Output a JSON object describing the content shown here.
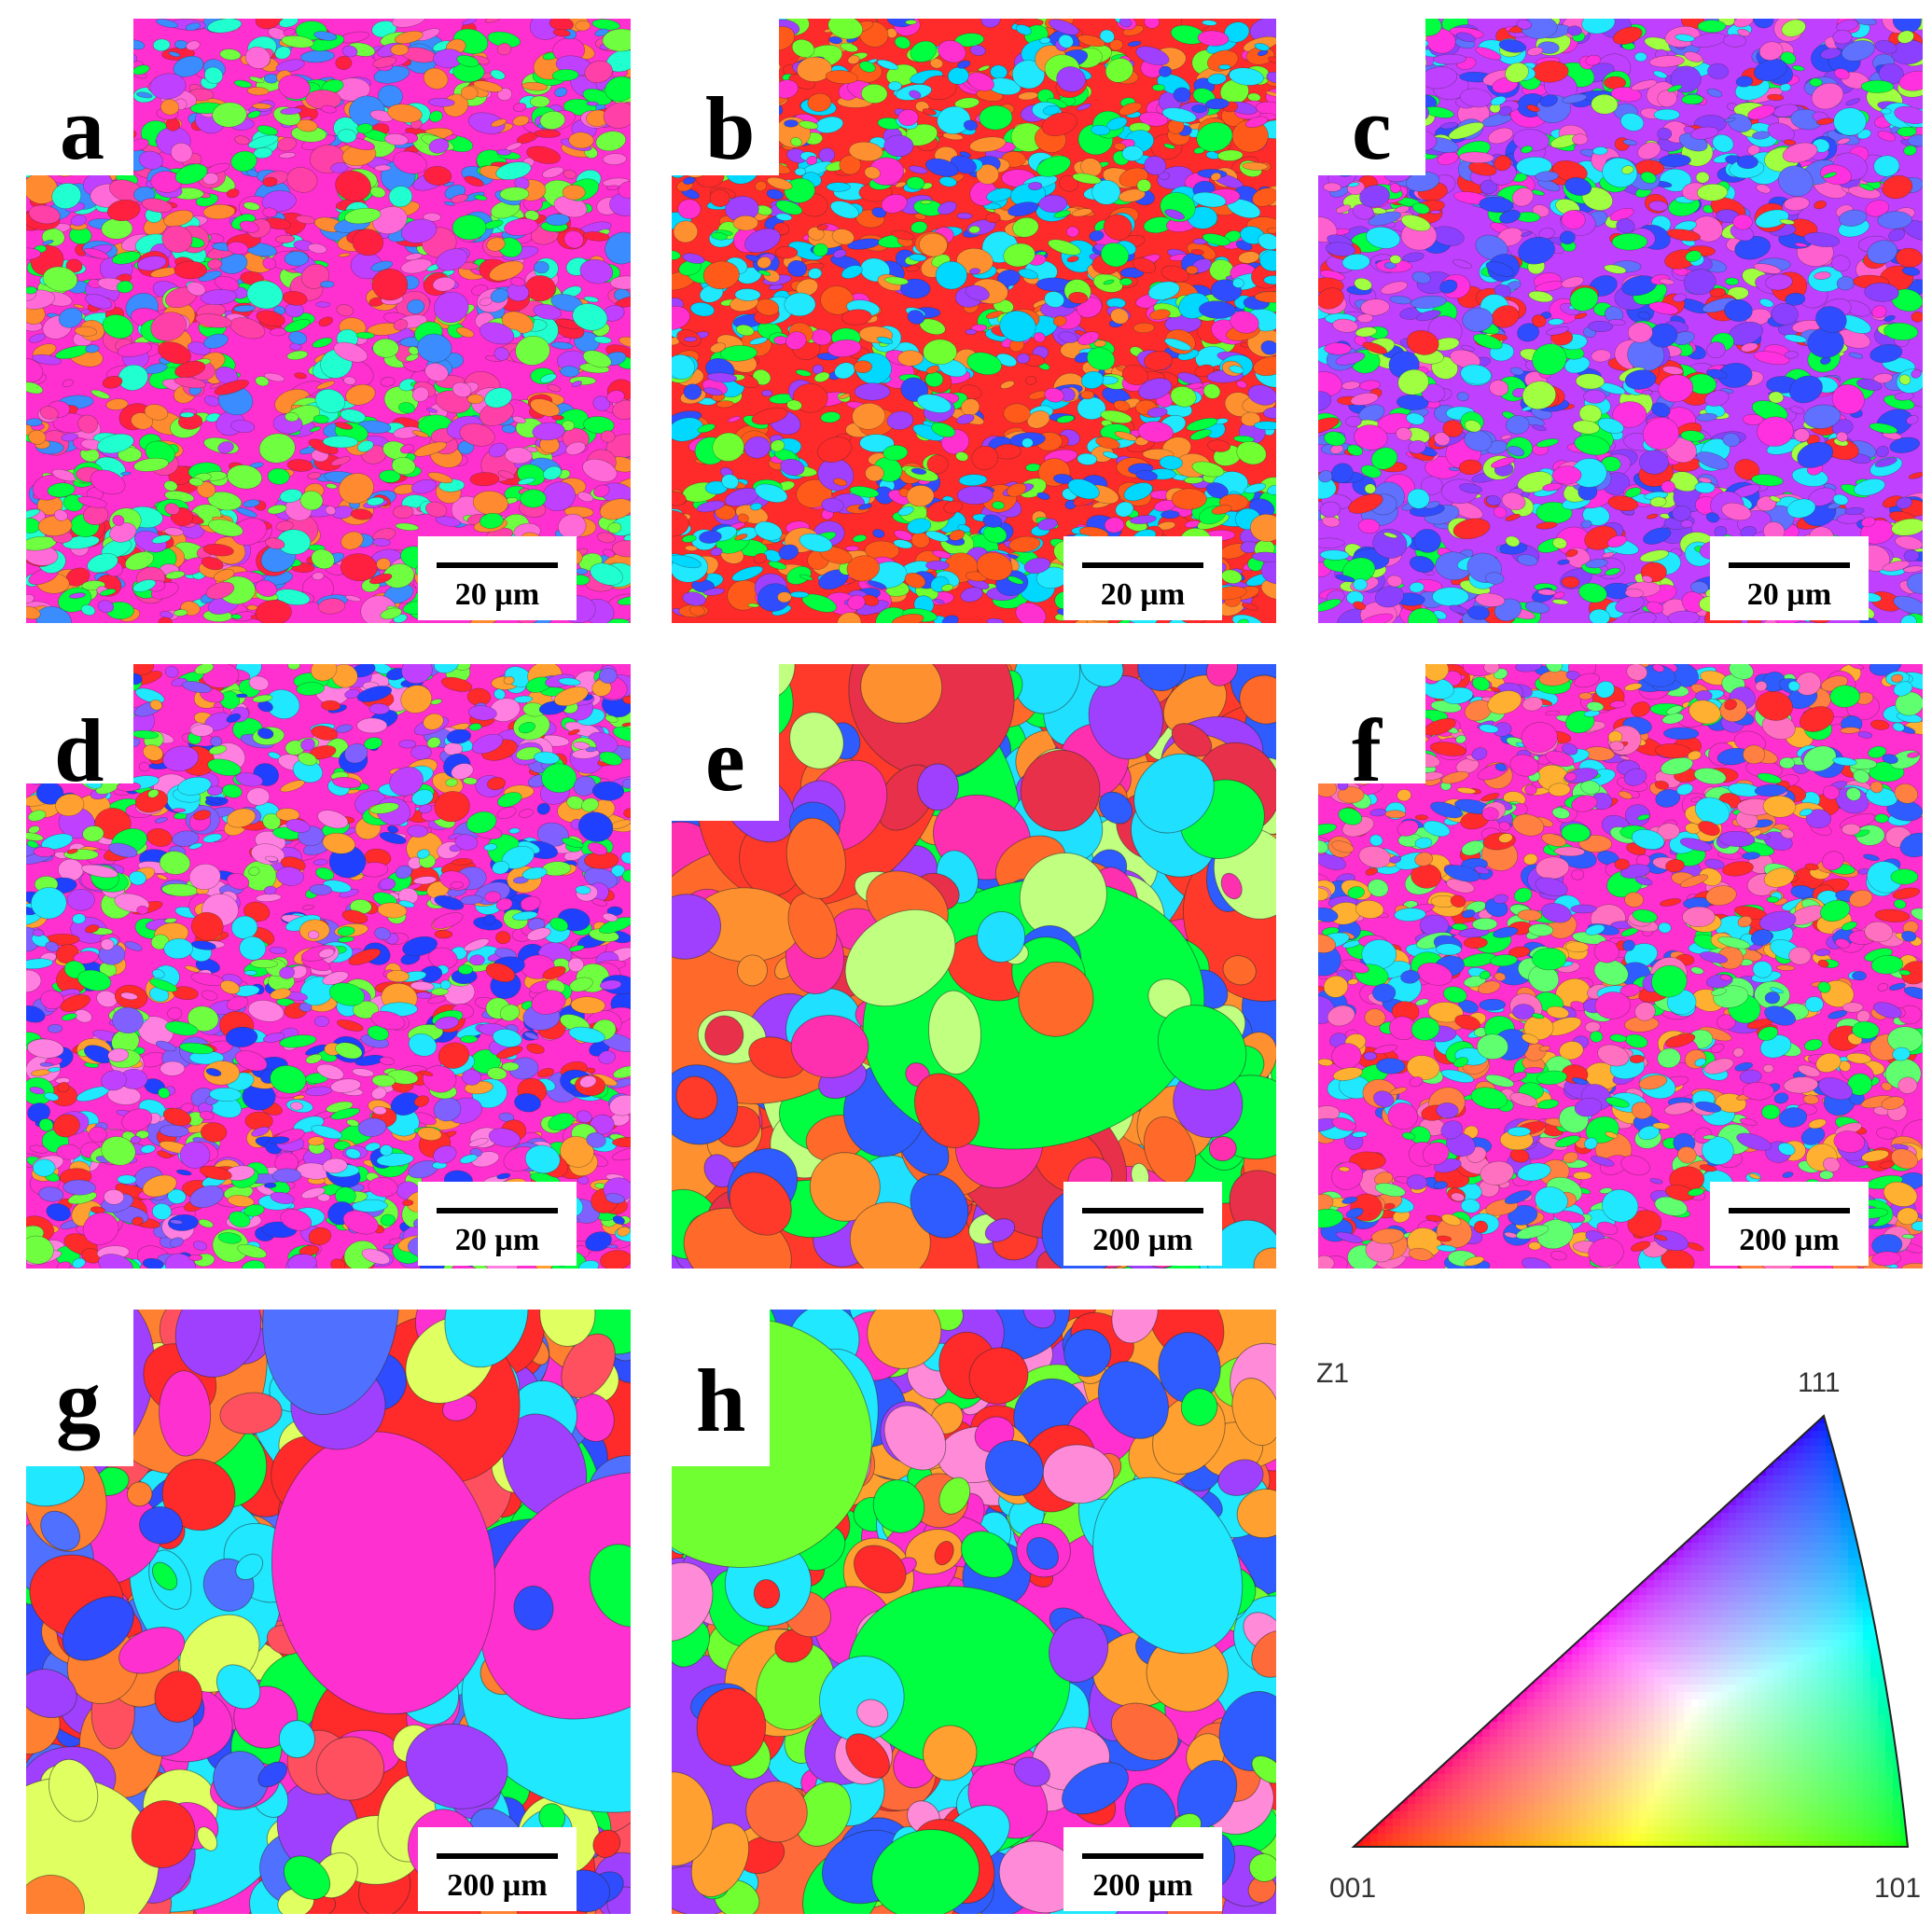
{
  "panels": [
    {
      "label": "a",
      "scale": "20 µm",
      "palette": [
        "#ff2fd0",
        "#ff40a8",
        "#00ff3c",
        "#ff2040",
        "#3a8cff",
        "#ff6ad8",
        "#20ffd0",
        "#ff8a30",
        "#c040ff",
        "#70ff40"
      ]
    },
    {
      "label": "b",
      "scale": "20 µm",
      "palette": [
        "#ff2a2a",
        "#ff5a1a",
        "#00ff40",
        "#20e8ff",
        "#2f4cff",
        "#ff2fd0",
        "#70ff30",
        "#ff9030",
        "#a040ff",
        "#00d8ff"
      ]
    },
    {
      "label": "c",
      "scale": "20 µm",
      "palette": [
        "#c040ff",
        "#8c40ff",
        "#ff30e0",
        "#2f4cff",
        "#00ff40",
        "#ff2a2a",
        "#20e8ff",
        "#ff60d0",
        "#6070ff",
        "#a0ff40"
      ]
    },
    {
      "label": "d",
      "scale": "20 µm",
      "palette": [
        "#ff2fd0",
        "#c040ff",
        "#2040ff",
        "#ff2a2a",
        "#00ff40",
        "#20e8ff",
        "#ff80e0",
        "#8060ff",
        "#ffa030",
        "#70ff40"
      ]
    },
    {
      "label": "e",
      "scale": "200 µm",
      "palette": [
        "#ff3a2a",
        "#ff6a2a",
        "#ff9030",
        "#00ff40",
        "#2f5cff",
        "#a040ff",
        "#ff30b0",
        "#20e0ff",
        "#c0ff80",
        "#e8304a"
      ]
    },
    {
      "label": "f",
      "scale": "200 µm",
      "palette": [
        "#ff2fd0",
        "#2f5cff",
        "#00ff40",
        "#ff2a2a",
        "#20e8ff",
        "#ffb030",
        "#a040ff",
        "#ff8040",
        "#60ff70",
        "#ff70c0"
      ]
    },
    {
      "label": "g",
      "scale": "200 µm",
      "palette": [
        "#ff2a2a",
        "#2f4cff",
        "#00ff40",
        "#ff30d0",
        "#20e8ff",
        "#a040ff",
        "#ff8030",
        "#e0ff60",
        "#5070ff",
        "#ff5060"
      ]
    },
    {
      "label": "h",
      "scale": "200 µm",
      "palette": [
        "#ff2a2a",
        "#00ff40",
        "#ff2fd0",
        "#2f5cff",
        "#ffa030",
        "#20e8ff",
        "#a040ff",
        "#70ff30",
        "#ff6a3a",
        "#ff8ad8"
      ]
    }
  ],
  "legend": {
    "axis_label": "Z1",
    "corner_001": "001",
    "corner_101": "101",
    "corner_111": "111",
    "colors": {
      "c001": "#ff0000",
      "c101": "#00ff00",
      "c111": "#0000ff"
    }
  }
}
